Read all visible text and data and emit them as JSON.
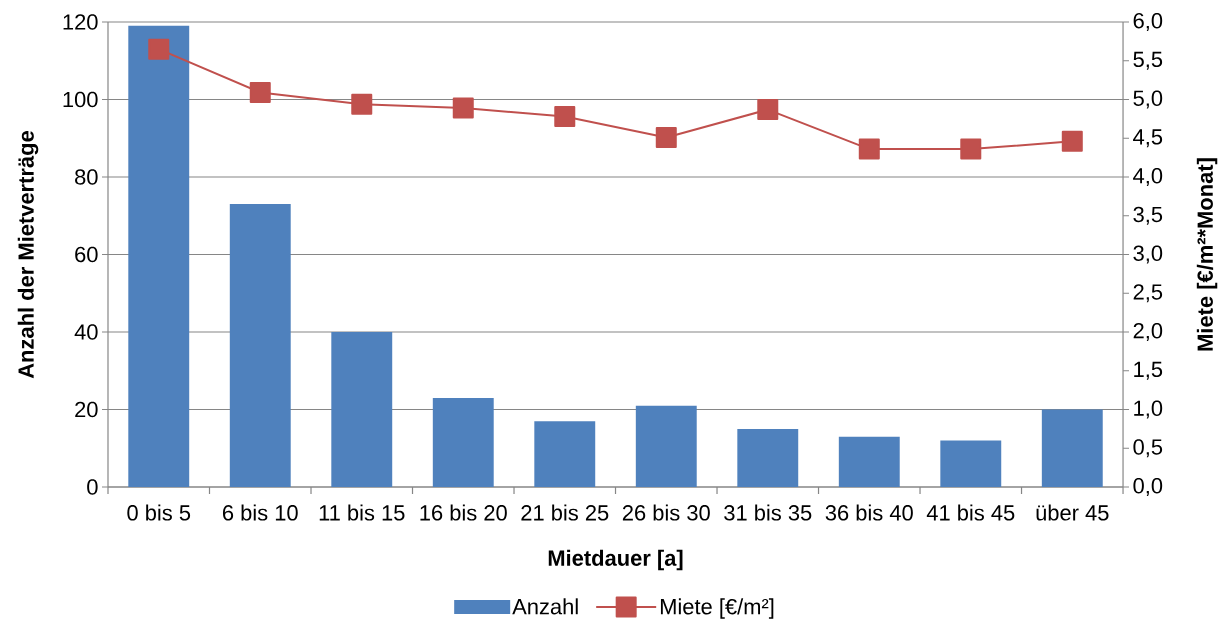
{
  "chart_data": {
    "type": "bar",
    "xlabel": "Mietdauer [a]",
    "ylabel": "Anzahl der Mietverträge",
    "y2label": "Miete [€/m²*Monat]",
    "categories": [
      "0 bis 5",
      "6 bis 10",
      "11 bis 15",
      "16 bis 20",
      "21 bis 25",
      "26 bis 30",
      "31 bis 35",
      "36 bis 40",
      "41 bis 45",
      "über 45"
    ],
    "series": [
      {
        "name": "Anzahl",
        "color": "#4f81bd",
        "values": [
          119,
          73,
          40,
          23,
          17,
          21,
          15,
          13,
          12,
          20
        ]
      },
      {
        "name": "Miete [€/m²]",
        "type": "line",
        "axis": "y2",
        "color": "#c0504d",
        "marker": "square",
        "line_style": "solid",
        "values": [
          5.65,
          5.09,
          4.94,
          4.89,
          4.78,
          4.51,
          4.87,
          4.36,
          4.36,
          4.46
        ]
      }
    ],
    "ylim": [
      0,
      120
    ],
    "yticks": [
      0,
      20,
      40,
      60,
      80,
      100,
      120
    ],
    "y2lim": [
      0,
      6
    ],
    "y2ticks": [
      {
        "value": 0,
        "label": "0,0"
      },
      {
        "value": 0.5,
        "label": "0,5"
      },
      {
        "value": 1,
        "label": "1,0"
      },
      {
        "value": 1.5,
        "label": "1,5"
      },
      {
        "value": 2,
        "label": "2,0"
      },
      {
        "value": 2.5,
        "label": "2,5"
      },
      {
        "value": 3,
        "label": "3,0"
      },
      {
        "value": 3.5,
        "label": "3,5"
      },
      {
        "value": 4,
        "label": "4,0"
      },
      {
        "value": 4.5,
        "label": "4,5"
      },
      {
        "value": 5,
        "label": "5,0"
      },
      {
        "value": 5.5,
        "label": "5,5"
      },
      {
        "value": 6,
        "label": "6,0"
      }
    ],
    "grid": "y",
    "legend": "bottom"
  }
}
